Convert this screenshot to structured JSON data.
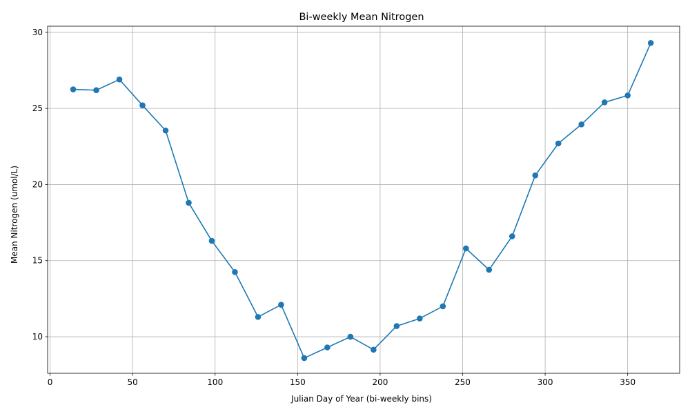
{
  "chart_data": {
    "type": "line",
    "title": "Bi-weekly Mean Nitrogen",
    "xlabel": "Julian Day of Year (bi-weekly bins)",
    "ylabel": "Mean Nitrogen (umol/L)",
    "xlim": [
      -1.5,
      381.5
    ],
    "ylim": [
      7.6,
      30.4
    ],
    "xticks": [
      0,
      50,
      100,
      150,
      200,
      250,
      300,
      350
    ],
    "yticks": [
      10,
      15,
      20,
      25,
      30
    ],
    "grid": true,
    "colors": {
      "series": "#1f77b4",
      "grid": "#b0b0b0",
      "axes": "#000000"
    },
    "series": [
      {
        "marker": "circle",
        "x": [
          14,
          28,
          42,
          56,
          70,
          84,
          98,
          112,
          126,
          140,
          154,
          168,
          182,
          196,
          210,
          224,
          238,
          252,
          266,
          280,
          294,
          308,
          322,
          336,
          350,
          364
        ],
        "y": [
          26.25,
          26.2,
          26.9,
          25.2,
          23.55,
          18.8,
          16.3,
          14.25,
          11.3,
          12.1,
          8.6,
          9.3,
          10.0,
          9.15,
          10.7,
          11.2,
          12.0,
          15.8,
          14.4,
          16.6,
          20.6,
          22.7,
          23.95,
          25.4,
          25.85,
          29.3
        ]
      }
    ]
  }
}
